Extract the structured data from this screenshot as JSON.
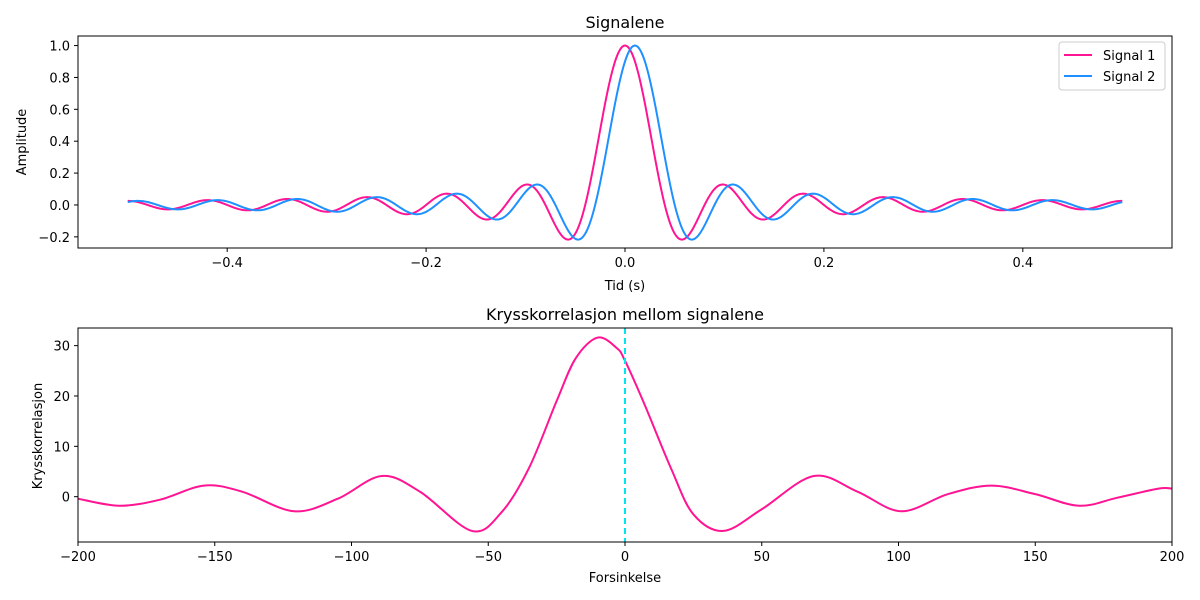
{
  "colors": {
    "signal1": "#ff1493",
    "signal2": "#1e90ff",
    "zero_line": "#00e5ee",
    "axes": "#000000"
  },
  "chart_data": [
    {
      "type": "line",
      "title": "Signalene",
      "xlabel": "Tid (s)",
      "ylabel": "Amplitude",
      "xlim": [
        -0.55,
        0.55
      ],
      "ylim": [
        -0.27,
        1.06
      ],
      "xticks": [
        -0.4,
        -0.2,
        0.0,
        0.2,
        0.4
      ],
      "xtick_labels": [
        "−0.4",
        "−0.2",
        "0.0",
        "0.2",
        "0.4"
      ],
      "yticks": [
        -0.2,
        0.0,
        0.2,
        0.4,
        0.6,
        0.8,
        1.0
      ],
      "ytick_labels": [
        "−0.2",
        "0.0",
        "0.2",
        "0.4",
        "0.6",
        "0.8",
        "1.0"
      ],
      "legend_position": "top-right",
      "series": [
        {
          "name": "Signal 1",
          "function": "sinc",
          "center": 0.0,
          "main_lobe_zero": 0.04,
          "x_range": [
            -0.5,
            0.5
          ],
          "samples": 1000
        },
        {
          "name": "Signal 2",
          "function": "sinc",
          "center": 0.01,
          "main_lobe_zero": 0.04,
          "x_range": [
            -0.5,
            0.5
          ],
          "samples": 1000
        }
      ]
    },
    {
      "type": "line",
      "title": "Krysskorrelasjon mellom signalene",
      "xlabel": "Forsinkelse",
      "ylabel": "Krysskorrelasjon",
      "xlim": [
        -200,
        200
      ],
      "ylim": [
        -9,
        33.5
      ],
      "xticks": [
        -200,
        -150,
        -100,
        -50,
        0,
        50,
        100,
        150,
        200
      ],
      "xtick_labels": [
        "−200",
        "−150",
        "−100",
        "−50",
        "0",
        "50",
        "100",
        "150",
        "200"
      ],
      "yticks": [
        0,
        10,
        20,
        30
      ],
      "ytick_labels": [
        "0",
        "10",
        "20",
        "30"
      ],
      "vline": {
        "x": 0,
        "style": "dashed"
      },
      "series": [
        {
          "name": "Krysskorrelasjon",
          "points": [
            [
              -200,
              -0.4
            ],
            [
              -185,
              -1.8
            ],
            [
              -170,
              -0.6
            ],
            [
              -154,
              2.2
            ],
            [
              -140,
              1.0
            ],
            [
              -121,
              -2.9
            ],
            [
              -105,
              -0.4
            ],
            [
              -89,
              4.1
            ],
            [
              -75,
              1.0
            ],
            [
              -56,
              -6.8
            ],
            [
              -45,
              -3.0
            ],
            [
              -35,
              5.8
            ],
            [
              -25,
              19.0
            ],
            [
              -18,
              27.5
            ],
            [
              -10,
              31.6
            ],
            [
              -3,
              29.5
            ],
            [
              0,
              27.0
            ],
            [
              7,
              18.5
            ],
            [
              17,
              5.4
            ],
            [
              25,
              -3.5
            ],
            [
              36,
              -6.8
            ],
            [
              50,
              -2.5
            ],
            [
              69,
              4.1
            ],
            [
              85,
              1.0
            ],
            [
              101,
              -2.9
            ],
            [
              118,
              0.5
            ],
            [
              134,
              2.2
            ],
            [
              150,
              0.5
            ],
            [
              166,
              -1.8
            ],
            [
              180,
              -0.2
            ],
            [
              195,
              1.6
            ],
            [
              200,
              1.6
            ]
          ]
        }
      ]
    }
  ]
}
